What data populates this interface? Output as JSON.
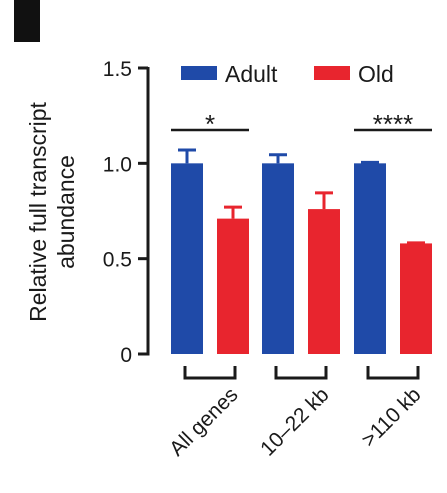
{
  "panel_label_color": "#111111",
  "chart_data": {
    "type": "bar",
    "ylabel_line1": "Relative full transcript",
    "ylabel_line2": "abundance",
    "ylim": [
      0,
      1.5
    ],
    "yticks": [
      0,
      0.5,
      1.0,
      1.5
    ],
    "ytick_labels": [
      "0",
      "0.5",
      "1.0",
      "1.5"
    ],
    "categories": [
      "All genes",
      "10–22 kb",
      ">110 kb"
    ],
    "series": [
      {
        "name": "Adult",
        "color": "#1f4aa8",
        "values": [
          1.0,
          1.0,
          1.0
        ],
        "errors": [
          0.07,
          0.045,
          0.005
        ]
      },
      {
        "name": "Old",
        "color": "#e8252e",
        "values": [
          0.71,
          0.76,
          0.58
        ],
        "errors": [
          0.06,
          0.085,
          0.003
        ]
      }
    ],
    "legend_placement": "top",
    "significance": [
      {
        "category_index": 0,
        "label": "*"
      },
      {
        "category_index": 2,
        "label": "****"
      }
    ]
  }
}
